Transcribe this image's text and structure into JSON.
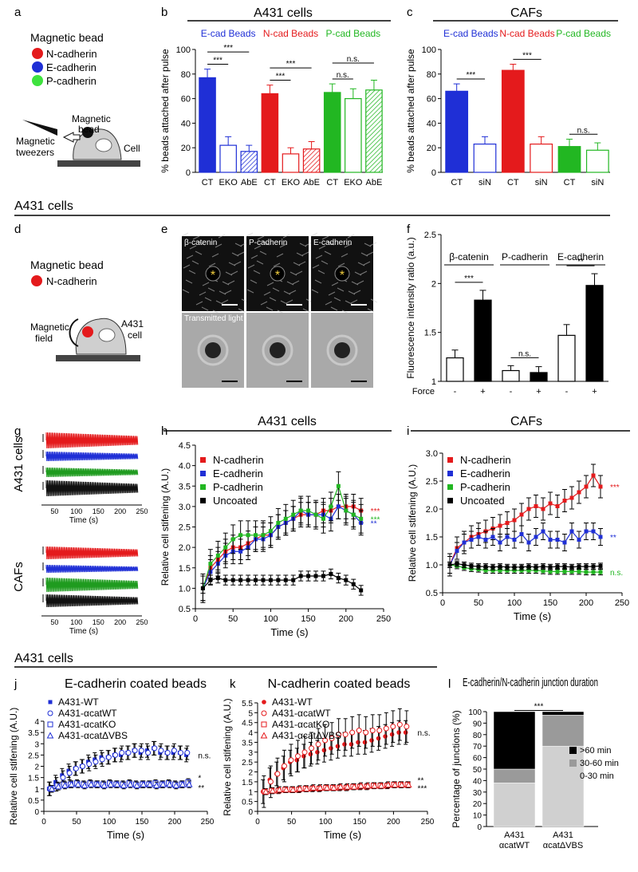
{
  "colors": {
    "red": "#e41a1c",
    "blue": "#1f2fd6",
    "green": "#22b722",
    "black": "#000000",
    "grey": "#9a9a9a",
    "lightgrey": "#d0d0d0"
  },
  "panel_letters": {
    "a": "a",
    "b": "b",
    "c": "c",
    "d": "d",
    "e": "e",
    "f": "f",
    "g": "g",
    "h": "h",
    "i": "i",
    "j": "j",
    "k": "k",
    "l": "l"
  },
  "section_titles": {
    "top": "A431 cells",
    "middle": "A431 cells",
    "bottom": "A431 cells"
  },
  "panel_a": {
    "legend_title": "Magnetic bead",
    "items": [
      "N-cadherin",
      "E-cadherin",
      "P-cadherin"
    ],
    "tweezers_label": [
      "Magnetic",
      "tweezers"
    ],
    "bead_label": [
      "Magnetic",
      "bead"
    ],
    "cell_label": "Cell"
  },
  "panel_d": {
    "legend_title": "Magnetic bead",
    "item": "N-cadherin",
    "field_label": [
      "Magnetic",
      "field"
    ],
    "cell_label": [
      "A431",
      "cell"
    ]
  },
  "panel_e": {
    "labels": [
      "β-catenin",
      "P-cadherin",
      "E-cadherin"
    ],
    "transmitted": "Transmitted light",
    "star": "*"
  },
  "panel_g": {
    "group1": "A431 cells",
    "group2": "CAFs",
    "xlabel": "Time (s)",
    "ticks": [
      "50",
      "100",
      "150",
      "200",
      "250"
    ]
  },
  "sig": {
    "three": "***",
    "two": "**",
    "ns": "n.s."
  },
  "chart_data": [
    {
      "id": "b",
      "type": "bar",
      "title": "A431 cells",
      "ylabel": "% beads attached after pulse",
      "ylim": [
        0,
        100
      ],
      "yticks": [
        0,
        20,
        40,
        60,
        80,
        100
      ],
      "groups": [
        {
          "name": "E-cad Beads",
          "color": "#1f2fd6"
        },
        {
          "name": "N-cad Beads",
          "color": "#e41a1c"
        },
        {
          "name": "P-cad Beads",
          "color": "#22b722"
        }
      ],
      "categories": [
        "CT",
        "EKO",
        "AbE",
        "CT",
        "EKO",
        "AbE",
        "CT",
        "EKO",
        "AbE"
      ],
      "values": [
        77,
        22,
        17,
        64,
        15,
        19,
        65,
        60,
        67
      ],
      "errors": [
        7,
        7,
        5,
        7,
        5,
        6,
        7,
        8,
        8
      ],
      "sig": [
        {
          "pair": [
            0,
            1
          ],
          "label": "***"
        },
        {
          "pair": [
            0,
            2
          ],
          "label": "***"
        },
        {
          "pair": [
            3,
            4
          ],
          "label": "***"
        },
        {
          "pair": [
            3,
            5
          ],
          "label": "***"
        },
        {
          "pair": [
            6,
            7
          ],
          "label": "n.s."
        },
        {
          "pair": [
            6,
            8
          ],
          "label": "n.s."
        }
      ]
    },
    {
      "id": "c",
      "type": "bar",
      "title": "CAFs",
      "ylabel": "% beads attached after pulse",
      "ylim": [
        0,
        100
      ],
      "yticks": [
        0,
        20,
        40,
        60,
        80,
        100
      ],
      "groups": [
        {
          "name": "E-cad Beads",
          "color": "#1f2fd6"
        },
        {
          "name": "N-cad Beads",
          "color": "#e41a1c"
        },
        {
          "name": "P-cad Beads",
          "color": "#22b722"
        }
      ],
      "categories": [
        "CT",
        "siN",
        "CT",
        "siN",
        "CT",
        "siN"
      ],
      "values": [
        66,
        23,
        83,
        23,
        21,
        18
      ],
      "errors": [
        6,
        6,
        5,
        6,
        6,
        6
      ],
      "sig": [
        {
          "pair": [
            0,
            1
          ],
          "label": "***"
        },
        {
          "pair": [
            2,
            3
          ],
          "label": "***"
        },
        {
          "pair": [
            4,
            5
          ],
          "label": "n.s."
        }
      ]
    },
    {
      "id": "f",
      "type": "bar",
      "ylabel": "Fluorescence intensity ratio (a.u.)",
      "ylim": [
        1,
        2.5
      ],
      "yticks": [
        "1",
        "1.5",
        "2",
        "2.5"
      ],
      "groups": [
        "β-catenin",
        "P-cadherin",
        "E-cadherin"
      ],
      "force_label": "Force",
      "categories": [
        "-",
        "+",
        "-",
        "+",
        "-",
        "+"
      ],
      "values": [
        1.24,
        1.83,
        1.11,
        1.09,
        1.47,
        1.98
      ],
      "errors": [
        0.08,
        0.1,
        0.05,
        0.06,
        0.11,
        0.12
      ],
      "sig": [
        "***",
        "n.s.",
        "**"
      ]
    },
    {
      "id": "h",
      "type": "line",
      "title": "A431 cells",
      "xlabel": "Time (s)",
      "ylabel": "Relative cell stifening (A.U.)",
      "xlim": [
        0,
        250
      ],
      "ylim": [
        0.5,
        4.5
      ],
      "xticks": [
        "0",
        "50",
        "100",
        "150",
        "200",
        "250"
      ],
      "yticks": [
        "0.5",
        "1.0",
        "1.5",
        "2.0",
        "2.5",
        "3.0",
        "3.5",
        "4.0",
        "4.5"
      ],
      "x": [
        10,
        20,
        30,
        40,
        50,
        60,
        70,
        80,
        90,
        100,
        110,
        120,
        130,
        140,
        150,
        160,
        170,
        180,
        190,
        200,
        210,
        220
      ],
      "series": [
        {
          "name": "N-cadherin",
          "color": "#e41a1c",
          "values": [
            1.0,
            1.5,
            1.7,
            1.9,
            2.0,
            2.0,
            2.1,
            2.2,
            2.3,
            2.3,
            2.5,
            2.6,
            2.7,
            2.8,
            2.8,
            2.8,
            2.9,
            2.9,
            3.0,
            3.0,
            3.0,
            2.9
          ],
          "err": 0.3,
          "sig": "***"
        },
        {
          "name": "E-cadherin",
          "color": "#1f2fd6",
          "values": [
            1.0,
            1.4,
            1.6,
            1.8,
            1.9,
            1.9,
            2.0,
            2.2,
            2.2,
            2.3,
            2.5,
            2.6,
            2.7,
            2.9,
            2.8,
            2.8,
            2.8,
            2.7,
            3.0,
            2.9,
            2.8,
            2.6
          ],
          "err": 0.3,
          "sig": "**"
        },
        {
          "name": "P-cadherin",
          "color": "#22b722",
          "values": [
            1.0,
            1.6,
            1.8,
            2.0,
            2.2,
            2.3,
            2.3,
            2.3,
            2.3,
            2.4,
            2.6,
            2.7,
            2.8,
            2.9,
            2.9,
            2.8,
            2.7,
            3.0,
            3.5,
            2.9,
            2.8,
            2.7
          ],
          "err": 0.35,
          "sig": "***"
        },
        {
          "name": "Uncoated",
          "color": "#000000",
          "values": [
            1.0,
            1.2,
            1.25,
            1.2,
            1.2,
            1.2,
            1.2,
            1.2,
            1.2,
            1.2,
            1.2,
            1.2,
            1.2,
            1.3,
            1.3,
            1.3,
            1.3,
            1.35,
            1.25,
            1.2,
            1.1,
            0.95
          ],
          "err": 0.12
        }
      ]
    },
    {
      "id": "i",
      "type": "line",
      "title": "CAFs",
      "xlabel": "Time (s)",
      "ylabel": "Relative cell stifening (A.U.)",
      "xlim": [
        0,
        250
      ],
      "ylim": [
        0.5,
        3.0
      ],
      "xticks": [
        "0",
        "50",
        "100",
        "150",
        "200",
        "250"
      ],
      "yticks": [
        "0.5",
        "1.0",
        "1.5",
        "2.0",
        "2.5",
        "3.0"
      ],
      "x": [
        10,
        20,
        30,
        40,
        50,
        60,
        70,
        80,
        90,
        100,
        110,
        120,
        130,
        140,
        150,
        160,
        170,
        180,
        190,
        200,
        210,
        220
      ],
      "series": [
        {
          "name": "N-cadherin",
          "color": "#e41a1c",
          "values": [
            1.0,
            1.3,
            1.4,
            1.5,
            1.55,
            1.6,
            1.65,
            1.7,
            1.75,
            1.8,
            1.9,
            2.0,
            2.05,
            2.0,
            2.1,
            2.05,
            2.15,
            2.2,
            2.3,
            2.4,
            2.6,
            2.4
          ],
          "err": 0.2,
          "sig": "***"
        },
        {
          "name": "E-cadherin",
          "color": "#1f2fd6",
          "values": [
            1.0,
            1.25,
            1.4,
            1.45,
            1.5,
            1.45,
            1.5,
            1.4,
            1.5,
            1.45,
            1.55,
            1.4,
            1.5,
            1.6,
            1.45,
            1.45,
            1.4,
            1.6,
            1.45,
            1.6,
            1.6,
            1.5
          ],
          "err": 0.15,
          "sig": "**"
        },
        {
          "name": "P-cadherin",
          "color": "#22b722",
          "values": [
            1.0,
            0.98,
            0.95,
            0.93,
            0.92,
            0.9,
            0.9,
            0.9,
            0.9,
            0.9,
            0.9,
            0.9,
            0.9,
            0.89,
            0.88,
            0.88,
            0.88,
            0.88,
            0.88,
            0.87,
            0.87,
            0.87
          ],
          "err": 0.05,
          "sig": "n.s."
        },
        {
          "name": "Uncoated",
          "color": "#000000",
          "values": [
            1.0,
            1.02,
            1.0,
            0.98,
            0.97,
            0.97,
            0.96,
            0.97,
            0.96,
            0.96,
            0.96,
            0.97,
            0.96,
            0.97,
            0.96,
            0.97,
            0.97,
            0.96,
            0.97,
            0.97,
            0.97,
            0.98
          ],
          "err": 0.05
        }
      ]
    },
    {
      "id": "j",
      "type": "scatter",
      "title": "E-cadherin coated beads",
      "xlabel": "Time (s)",
      "ylabel": "Relative cell stifening (A.U.)",
      "xlim": [
        0,
        250
      ],
      "ylim": [
        0,
        4
      ],
      "xticks": [
        "0",
        "50",
        "100",
        "150",
        "200",
        "250"
      ],
      "yticks": [
        "0",
        "0.5",
        "1",
        "1.5",
        "2",
        "2.5",
        "3",
        "3.5",
        "4"
      ],
      "x": [
        10,
        20,
        30,
        40,
        50,
        60,
        70,
        80,
        90,
        100,
        110,
        120,
        130,
        140,
        150,
        160,
        170,
        180,
        190,
        200,
        210,
        220
      ],
      "series": [
        {
          "name": "A431-WT",
          "marker": "filled-square",
          "color": "#1f2fd6",
          "values": [
            1.0,
            1.3,
            1.6,
            1.8,
            1.9,
            2.0,
            2.2,
            2.3,
            2.4,
            2.4,
            2.5,
            2.5,
            2.6,
            2.7,
            2.6,
            2.7,
            2.8,
            2.6,
            2.6,
            2.6,
            2.6,
            2.5
          ],
          "err": 0.3
        },
        {
          "name": "A431-αcatWT",
          "marker": "open-circle",
          "color": "#1f2fd6",
          "values": [
            1.0,
            1.2,
            1.5,
            1.7,
            1.9,
            2.0,
            2.1,
            2.2,
            2.3,
            2.4,
            2.5,
            2.6,
            2.6,
            2.7,
            2.7,
            2.6,
            2.8,
            2.7,
            2.6,
            2.7,
            2.6,
            2.6
          ],
          "err": 0.3
        },
        {
          "name": "A431-αcatKO",
          "marker": "open-square",
          "color": "#1f2fd6",
          "values": [
            1.0,
            1.15,
            1.2,
            1.2,
            1.25,
            1.2,
            1.25,
            1.2,
            1.2,
            1.25,
            1.2,
            1.2,
            1.25,
            1.2,
            1.2,
            1.2,
            1.25,
            1.2,
            1.25,
            1.2,
            1.2,
            1.3
          ],
          "err": 0.15
        },
        {
          "name": "A431-αcatΔVBS",
          "marker": "open-triangle",
          "color": "#1f2fd6",
          "values": [
            1.0,
            1.1,
            1.15,
            1.2,
            1.2,
            1.15,
            1.2,
            1.2,
            1.15,
            1.2,
            1.2,
            1.15,
            1.2,
            1.15,
            1.2,
            1.2,
            1.15,
            1.2,
            1.2,
            1.15,
            1.2,
            1.2
          ],
          "err": 0.15
        }
      ],
      "sig": [
        "n.s.",
        "*",
        "**"
      ]
    },
    {
      "id": "k",
      "type": "scatter",
      "title": "N-cadherin coated beads",
      "xlabel": "Time (s)",
      "ylabel": "Relative cell stifening (A.U.)",
      "xlim": [
        0,
        250
      ],
      "ylim": [
        0,
        5.5
      ],
      "xticks": [
        "0",
        "50",
        "100",
        "150",
        "200",
        "250"
      ],
      "yticks": [
        "0",
        "0.5",
        "1",
        "1.5",
        "2",
        "2.5",
        "3",
        "3.5",
        "4",
        "4.5",
        "5",
        "5.5"
      ],
      "x": [
        10,
        20,
        30,
        40,
        50,
        60,
        70,
        80,
        90,
        100,
        110,
        120,
        130,
        140,
        150,
        160,
        170,
        180,
        190,
        200,
        210,
        220
      ],
      "series": [
        {
          "name": "A431-WT",
          "marker": "filled-circle",
          "color": "#e41a1c",
          "values": [
            1.0,
            1.6,
            1.9,
            2.2,
            2.5,
            2.6,
            2.8,
            2.9,
            3.0,
            3.1,
            3.2,
            3.3,
            3.4,
            3.4,
            3.5,
            3.5,
            3.6,
            3.7,
            3.8,
            3.9,
            4.0,
            4.0
          ],
          "err": 0.6
        },
        {
          "name": "A431-αcatWT",
          "marker": "open-circle",
          "color": "#e41a1c",
          "values": [
            1.0,
            1.5,
            1.9,
            2.3,
            2.6,
            2.8,
            3.0,
            3.2,
            3.4,
            3.6,
            3.7,
            3.9,
            3.9,
            4.0,
            4.1,
            4.0,
            4.1,
            4.1,
            4.2,
            4.3,
            4.4,
            4.3
          ],
          "err": 0.8
        },
        {
          "name": "A431-αcatKO",
          "marker": "open-square",
          "color": "#e41a1c",
          "values": [
            1.0,
            1.05,
            1.05,
            1.1,
            1.1,
            1.1,
            1.15,
            1.15,
            1.15,
            1.2,
            1.2,
            1.2,
            1.2,
            1.25,
            1.25,
            1.25,
            1.3,
            1.3,
            1.3,
            1.35,
            1.35,
            1.35
          ],
          "err": 0.15
        },
        {
          "name": "A431-αcatΔVBS",
          "marker": "open-triangle",
          "color": "#e41a1c",
          "values": [
            1.0,
            1.05,
            1.1,
            1.1,
            1.1,
            1.15,
            1.15,
            1.2,
            1.2,
            1.2,
            1.2,
            1.25,
            1.25,
            1.25,
            1.3,
            1.3,
            1.3,
            1.3,
            1.35,
            1.35,
            1.35,
            1.35
          ],
          "err": 0.15
        }
      ],
      "sig": [
        "n.s.",
        "**",
        "***"
      ]
    },
    {
      "id": "l",
      "type": "bar",
      "title": "E-cadherin/N-cadherin junction duration",
      "ylabel": "Percentage of junctions (%)",
      "ylim": [
        0,
        100
      ],
      "yticks": [
        "0",
        "10",
        "20",
        "30",
        "40",
        "50",
        "60",
        "70",
        "80",
        "90",
        "100"
      ],
      "categories": [
        [
          "A431",
          "αcatWT"
        ],
        [
          "A431",
          "αcatΔVBS"
        ]
      ],
      "stacks": [
        {
          "name": "0-30 min",
          "color": "#d0d0d0",
          "values": [
            38,
            70
          ]
        },
        {
          "name": "30-60 min",
          "color": "#9a9a9a",
          "values": [
            12,
            27
          ]
        },
        {
          "name": ">60 min",
          "color": "#000000",
          "values": [
            50,
            3
          ]
        }
      ],
      "legend": [
        ">60 min",
        "30-60 min",
        "0-30 min"
      ],
      "sig": "***"
    }
  ]
}
